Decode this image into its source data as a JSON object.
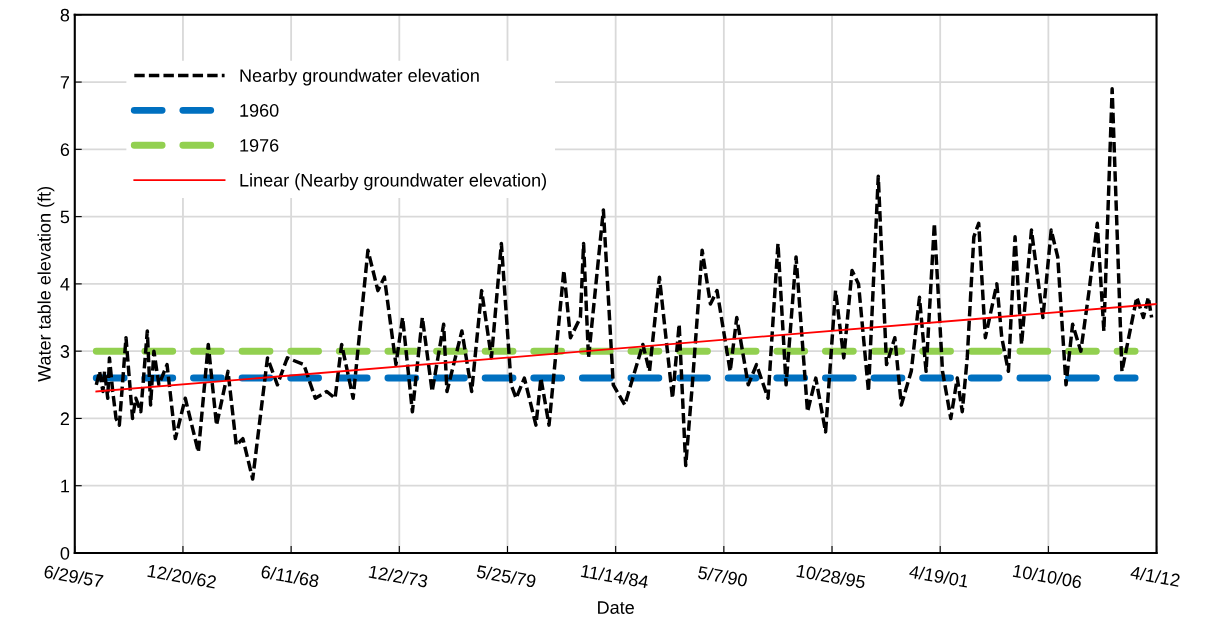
{
  "chart_data": {
    "type": "line",
    "xlabel": "Date",
    "ylabel": "Water table elevation (ft)",
    "xlim": [
      "1957-06-29",
      "2012-04-01"
    ],
    "xticks": [
      {
        "value": "1957-06-29",
        "label": "6/29/57"
      },
      {
        "value": "1962-12-20",
        "label": "12/20/62"
      },
      {
        "value": "1968-06-11",
        "label": "6/11/68"
      },
      {
        "value": "1973-12-02",
        "label": "12/2/73"
      },
      {
        "value": "1979-05-25",
        "label": "5/25/79"
      },
      {
        "value": "1984-11-14",
        "label": "11/14/84"
      },
      {
        "value": "1990-05-07",
        "label": "5/7/90"
      },
      {
        "value": "1995-10-28",
        "label": "10/28/95"
      },
      {
        "value": "2001-04-19",
        "label": "4/19/01"
      },
      {
        "value": "2006-10-10",
        "label": "10/10/06"
      },
      {
        "value": "2012-04-01",
        "label": "4/1/12"
      }
    ],
    "ylim": [
      0,
      8
    ],
    "yticks": [
      0,
      1,
      2,
      3,
      4,
      5,
      6,
      7,
      8
    ],
    "grid": true,
    "legend": "top left",
    "marker": "none",
    "series": [
      {
        "name": "Nearby groundwater elevation",
        "color": "#000000",
        "line_style": "dashed",
        "x": [
          "1958-08",
          "1958-10",
          "1958-12",
          "1959-01",
          "1959-03",
          "1959-04",
          "1959-06",
          "1959-08",
          "1959-10",
          "1960-02",
          "1960-06",
          "1960-08",
          "1960-11",
          "1961-03",
          "1961-05",
          "1961-07",
          "1961-10",
          "1962-03",
          "1962-08",
          "1963-02",
          "1963-10",
          "1964-04",
          "1964-09",
          "1965-04",
          "1965-09",
          "1966-01",
          "1966-07",
          "1967-04",
          "1967-10",
          "1968-04",
          "1969-02",
          "1969-09",
          "1970-04",
          "1970-09",
          "1971-01",
          "1971-08",
          "1972-05",
          "1972-11",
          "1973-03",
          "1973-10",
          "1974-02",
          "1974-08",
          "1975-02",
          "1975-08",
          "1976-03",
          "1976-05",
          "1977-02",
          "1977-08",
          "1978-02",
          "1978-08",
          "1979-02",
          "1979-08",
          "1979-11",
          "1980-04",
          "1980-11",
          "1981-02",
          "1981-07",
          "1982-04",
          "1982-08",
          "1983-02",
          "1983-04",
          "1983-07",
          "1984-04",
          "1984-10",
          "1985-05",
          "1986-04",
          "1986-08",
          "1987-02",
          "1987-10",
          "1988-02",
          "1988-06",
          "1988-10",
          "1989-04",
          "1989-09",
          "1990-01",
          "1990-09",
          "1991-01",
          "1991-08",
          "1992-01",
          "1992-08",
          "1993-02",
          "1993-07",
          "1994-01",
          "1994-08",
          "1995-01",
          "1995-07",
          "1996-01",
          "1996-06",
          "1996-11",
          "1997-03",
          "1997-09",
          "1998-03",
          "1998-08",
          "1999-01",
          "1999-05",
          "1999-11",
          "2000-04",
          "2000-08",
          "2001-01",
          "2001-06",
          "2001-11",
          "2002-03",
          "2002-06",
          "2002-09",
          "2003-01",
          "2003-04",
          "2003-08",
          "2004-03",
          "2004-06",
          "2004-10",
          "2005-02",
          "2005-06",
          "2005-12",
          "2006-07",
          "2006-12",
          "2007-04",
          "2007-09",
          "2008-01",
          "2008-06",
          "2008-11",
          "2009-04",
          "2009-08",
          "2010-01",
          "2010-07",
          "2011-04",
          "2011-08",
          "2011-11",
          "2012-01"
        ],
        "values": [
          2.5,
          2.7,
          2.4,
          2.7,
          2.3,
          2.9,
          2.4,
          2.0,
          1.9,
          3.2,
          2.0,
          2.3,
          2.1,
          3.3,
          2.2,
          3.0,
          2.5,
          2.8,
          1.7,
          2.3,
          1.5,
          3.1,
          1.9,
          2.7,
          1.6,
          1.7,
          1.1,
          2.9,
          2.5,
          2.9,
          2.8,
          2.3,
          2.4,
          2.3,
          3.1,
          2.3,
          4.5,
          3.9,
          4.1,
          2.8,
          3.5,
          2.1,
          3.5,
          2.4,
          3.4,
          2.4,
          3.3,
          2.4,
          3.9,
          2.9,
          4.6,
          2.5,
          2.3,
          2.6,
          1.9,
          2.6,
          1.9,
          4.2,
          3.2,
          3.5,
          4.6,
          2.9,
          5.1,
          2.5,
          2.2,
          3.1,
          2.7,
          4.1,
          2.3,
          3.4,
          1.3,
          2.5,
          4.5,
          3.7,
          3.9,
          2.7,
          3.5,
          2.5,
          2.8,
          2.3,
          4.6,
          2.5,
          4.4,
          2.1,
          2.6,
          1.8,
          3.9,
          2.9,
          4.2,
          4.0,
          2.4,
          5.6,
          2.8,
          3.2,
          2.2,
          2.7,
          3.8,
          2.7,
          4.9,
          2.7,
          2.0,
          2.6,
          2.1,
          2.9,
          4.7,
          4.9,
          3.2,
          4.0,
          3.2,
          2.7,
          4.7,
          3.1,
          4.8,
          3.5,
          4.8,
          4.4,
          2.5,
          3.4,
          3.0,
          3.9,
          4.9,
          3.3,
          6.9,
          2.7,
          3.8,
          3.5,
          3.8,
          3.5
        ]
      },
      {
        "name": "1960",
        "color": "#0070c0",
        "line_style": "dashed",
        "x": [
          "1958-08",
          "2011-03"
        ],
        "values": [
          2.6,
          2.6
        ]
      },
      {
        "name": "1976",
        "color": "#92d050",
        "line_style": "dashed",
        "x": [
          "1958-08",
          "2011-03"
        ],
        "values": [
          3.0,
          3.0
        ]
      },
      {
        "name": "Linear (Nearby groundwater elevation)",
        "color": "#ff0000",
        "line_style": "solid",
        "x": [
          "1958-08",
          "2012-04"
        ],
        "values": [
          2.4,
          3.7
        ]
      }
    ]
  }
}
